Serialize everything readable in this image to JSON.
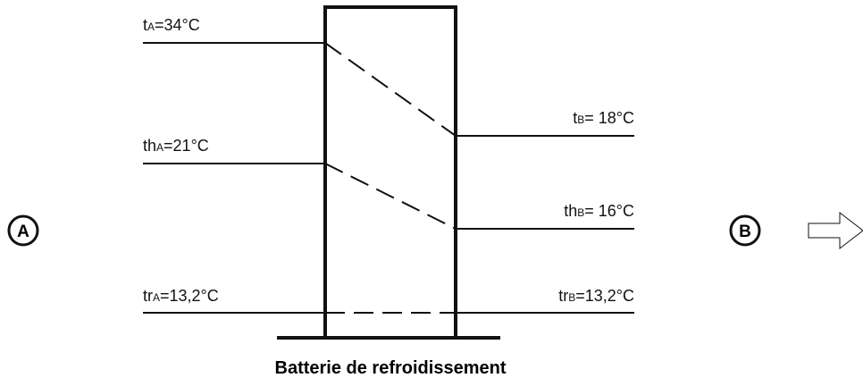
{
  "inlet": {
    "label": "A",
    "temperatures": [
      {
        "symbol": "t",
        "sub": "A",
        "value": "=34°C"
      },
      {
        "symbol": "th",
        "sub": "A",
        "value": "=21°C"
      },
      {
        "symbol": "tr",
        "sub": "A",
        "value": "=13,2°C"
      }
    ]
  },
  "outlet": {
    "label": "B",
    "temperatures": [
      {
        "symbol": "t",
        "sub": "B",
        "value": "= 18°C"
      },
      {
        "symbol": "th",
        "sub": "B",
        "value": "= 16°C"
      },
      {
        "symbol": "tr",
        "sub": "B",
        "value": "=13,2°C"
      }
    ]
  },
  "caption": "Batterie de refroidissement"
}
